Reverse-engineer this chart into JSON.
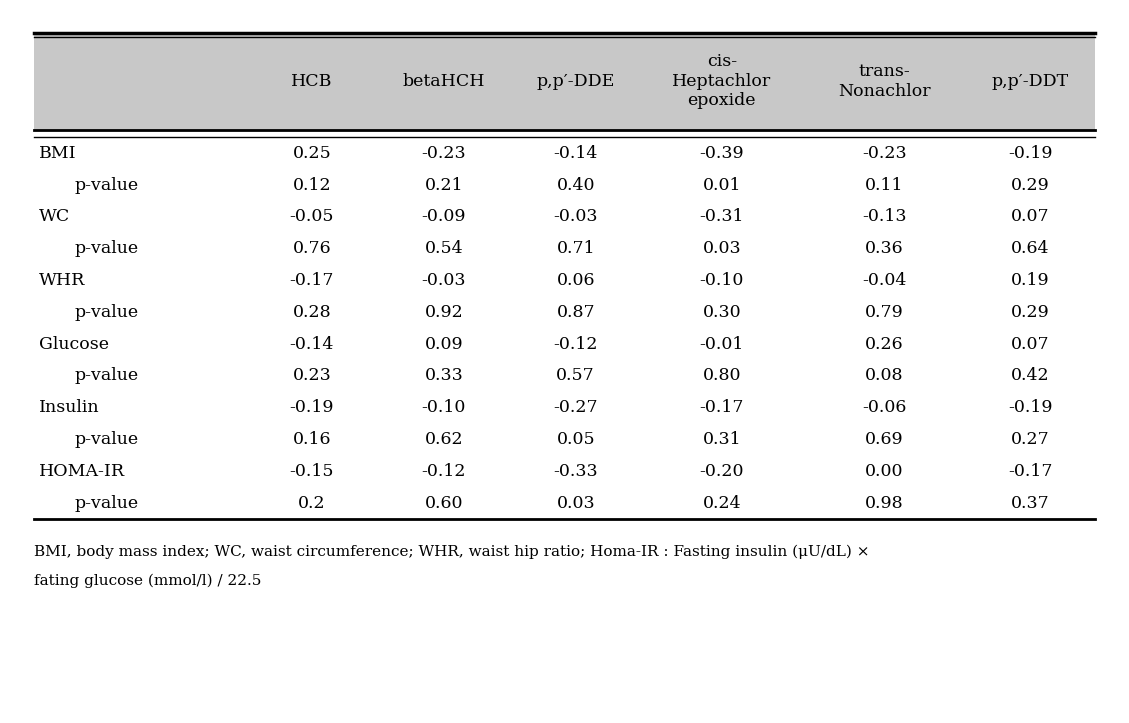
{
  "col_headers": [
    "",
    "HCB",
    "betaHCH",
    "p,p′-DDE",
    "cis-\nHeptachlor\nepoxide",
    "trans-\nNonachlor",
    "p,p′-DDT"
  ],
  "rows": [
    [
      "BMI",
      "0.25",
      "-0.23",
      "-0.14",
      "-0.39",
      "-0.23",
      "-0.19"
    ],
    [
      "p-value",
      "0.12",
      "0.21",
      "0.40",
      "0.01",
      "0.11",
      "0.29"
    ],
    [
      "WC",
      "-0.05",
      "-0.09",
      "-0.03",
      "-0.31",
      "-0.13",
      "0.07"
    ],
    [
      "p-value",
      "0.76",
      "0.54",
      "0.71",
      "0.03",
      "0.36",
      "0.64"
    ],
    [
      "WHR",
      "-0.17",
      "-0.03",
      "0.06",
      "-0.10",
      "-0.04",
      "0.19"
    ],
    [
      "p-value",
      "0.28",
      "0.92",
      "0.87",
      "0.30",
      "0.79",
      "0.29"
    ],
    [
      "Glucose",
      "-0.14",
      "0.09",
      "-0.12",
      "-0.01",
      "0.26",
      "0.07"
    ],
    [
      "p-value",
      "0.23",
      "0.33",
      "0.57",
      "0.80",
      "0.08",
      "0.42"
    ],
    [
      "Insulin",
      "-0.19",
      "-0.10",
      "-0.27",
      "-0.17",
      "-0.06",
      "-0.19"
    ],
    [
      "p-value",
      "0.16",
      "0.62",
      "0.05",
      "0.31",
      "0.69",
      "0.27"
    ],
    [
      "HOMA-IR",
      "-0.15",
      "-0.12",
      "-0.33",
      "-0.20",
      "0.00",
      "-0.17"
    ],
    [
      "p-value",
      "0.2",
      "0.60",
      "0.03",
      "0.24",
      "0.98",
      "0.37"
    ]
  ],
  "is_pvalue": [
    false,
    true,
    false,
    true,
    false,
    true,
    false,
    true,
    false,
    true,
    false,
    true
  ],
  "footnote1": "BMI, body mass index; WC, waist circumference; WHR, waist hip ratio; Homa-IR : Fasting insulin (μU/dL) ×",
  "footnote2": "fating glucose (mmol/l) / 22.5",
  "header_bg": "#c8c8c8",
  "bg_white": "#ffffff",
  "font_size": 12.5,
  "header_font_size": 12.5,
  "footnote_font_size": 11.0
}
